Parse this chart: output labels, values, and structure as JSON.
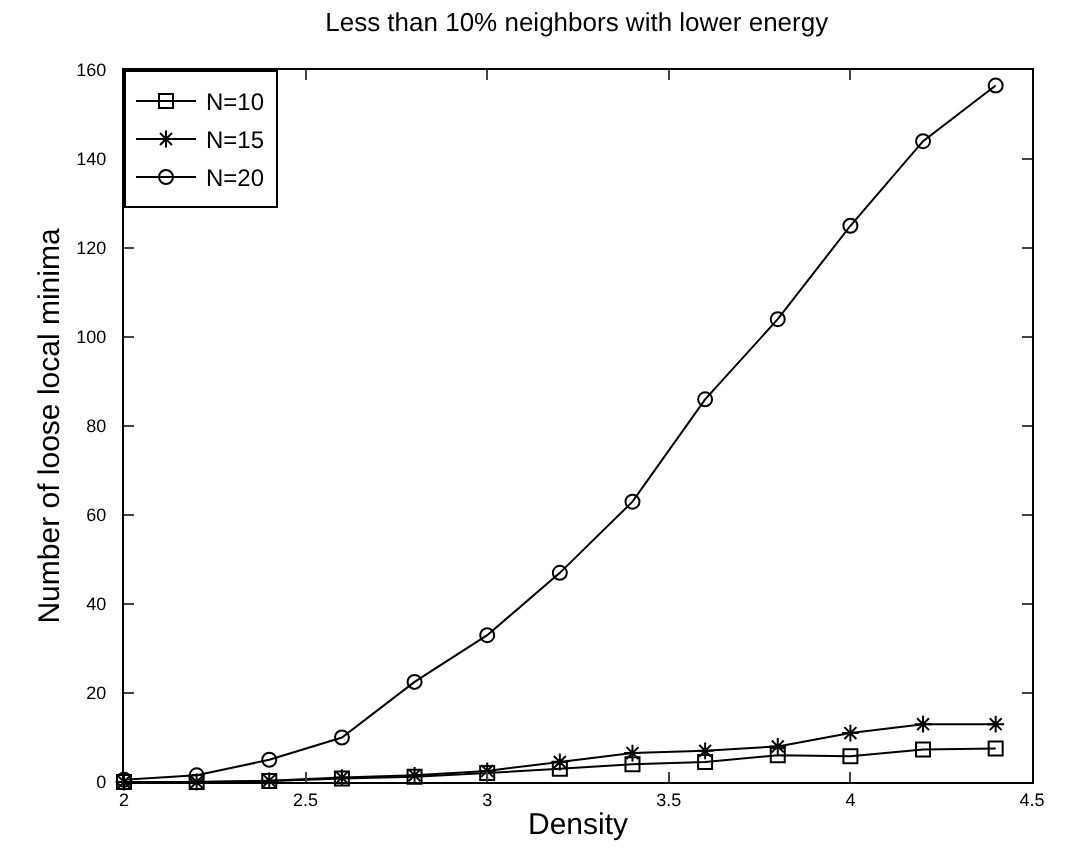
{
  "chart_data": {
    "type": "line",
    "title": "Less than 10% neighbors with lower energy",
    "xlabel": "Density",
    "ylabel": "Number of loose local minima",
    "x": [
      2.0,
      2.2,
      2.4,
      2.6,
      2.8,
      3.0,
      3.2,
      3.4,
      3.6,
      3.8,
      4.0,
      4.2,
      4.4
    ],
    "series": [
      {
        "name": "N=10",
        "color": "#000000",
        "marker": "square",
        "values": [
          0,
          0,
          0.2,
          0.8,
          1.2,
          2,
          3,
          4,
          4.5,
          6,
          5.8,
          7.3,
          7.5
        ]
      },
      {
        "name": "N=15",
        "color": "#000000",
        "marker": "cross",
        "values": [
          0,
          0,
          0.3,
          1,
          1.5,
          2.5,
          4.5,
          6.5,
          7,
          8,
          11,
          13,
          13
        ]
      },
      {
        "name": "N=20",
        "color": "#000000",
        "marker": "circle",
        "values": [
          0.5,
          1.5,
          5,
          10,
          22.5,
          33,
          47,
          63,
          86,
          104,
          125,
          144,
          156.5
        ]
      }
    ],
    "xlim": [
      2,
      4.5
    ],
    "xticks": [
      2,
      2.5,
      3,
      3.5,
      4,
      4.5
    ],
    "ylim": [
      0,
      160
    ],
    "yticks": [
      0,
      20,
      40,
      60,
      80,
      100,
      120,
      140,
      160
    ],
    "grid": false,
    "legend": "top left",
    "line_style": "solid"
  }
}
